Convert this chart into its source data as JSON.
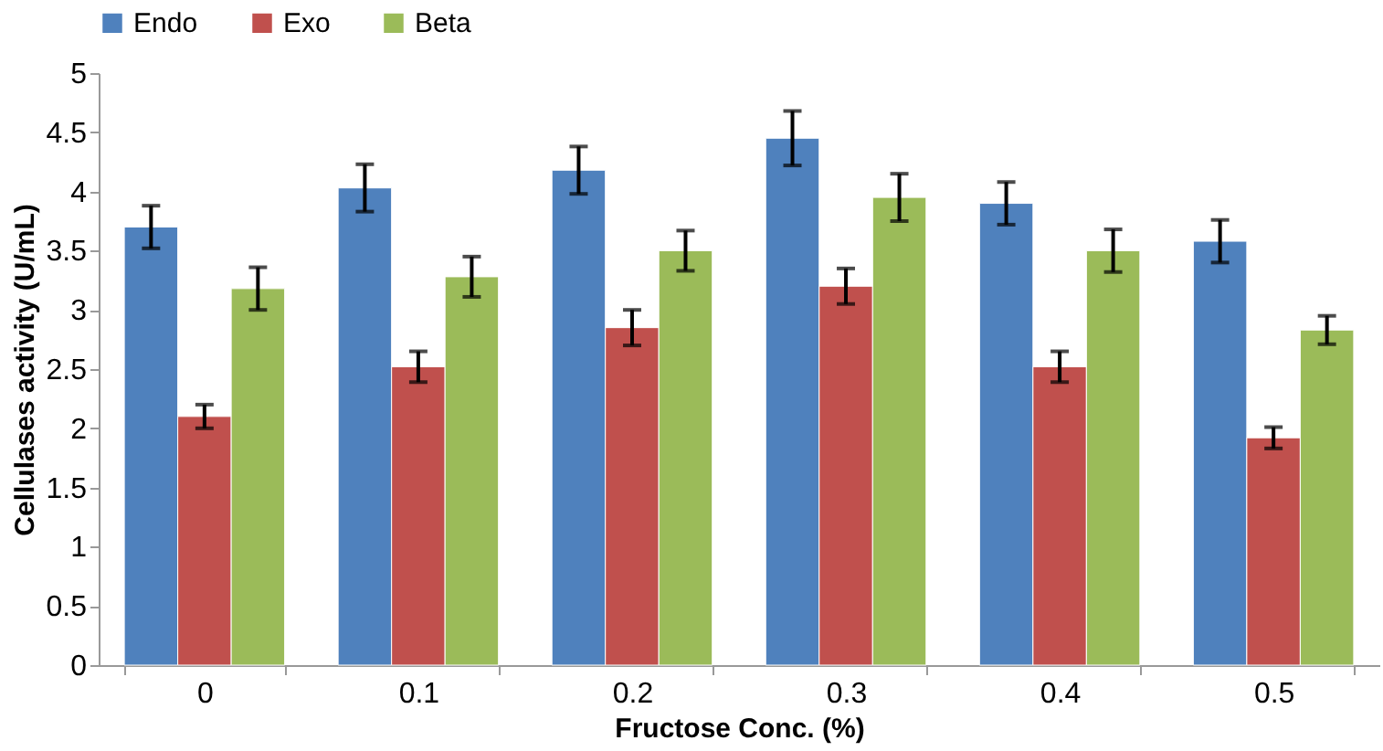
{
  "chart_data": {
    "type": "bar",
    "xlabel": "Fructose Conc. (%)",
    "ylabel": "Cellulases activity (U/mL)",
    "categories": [
      "0",
      "0.1",
      "0.2",
      "0.3",
      "0.4",
      "0.5"
    ],
    "series": [
      {
        "name": "Endo",
        "color": "#4f81bd",
        "values": [
          3.7,
          4.03,
          4.18,
          4.45,
          3.9,
          3.58
        ],
        "errors": [
          0.18,
          0.2,
          0.2,
          0.23,
          0.18,
          0.18
        ]
      },
      {
        "name": "Exo",
        "color": "#c0504d",
        "values": [
          2.1,
          2.52,
          2.85,
          3.2,
          2.52,
          1.92
        ],
        "errors": [
          0.1,
          0.13,
          0.15,
          0.15,
          0.13,
          0.09
        ]
      },
      {
        "name": "Beta",
        "color": "#9bbb59",
        "values": [
          3.18,
          3.28,
          3.5,
          3.95,
          3.5,
          2.83
        ],
        "errors": [
          0.18,
          0.17,
          0.17,
          0.2,
          0.18,
          0.12
        ]
      }
    ],
    "ylim": [
      0,
      5
    ],
    "yticks": [
      0,
      0.5,
      1,
      1.5,
      2,
      2.5,
      3,
      3.5,
      4,
      4.5,
      5
    ],
    "grid": false,
    "legend": "top"
  }
}
